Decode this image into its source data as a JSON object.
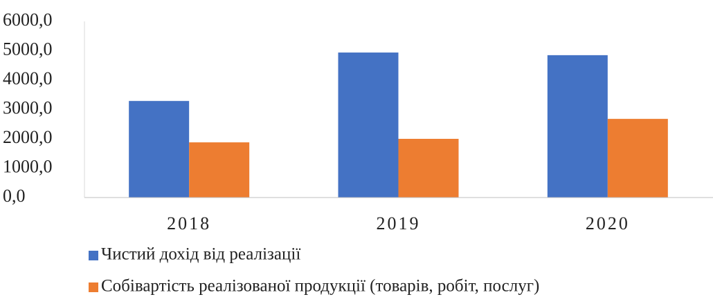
{
  "chart_data": {
    "type": "bar",
    "categories": [
      "2018",
      "2019",
      "2020"
    ],
    "series": [
      {
        "name": "Чистий дохід від реалізації",
        "color": "#4472c4",
        "values": [
          3290,
          4940,
          4850
        ]
      },
      {
        "name": "Собівартість реалізованої продукції (товарів, робіт, послуг)",
        "color": "#ed7d31",
        "values": [
          1880,
          2000,
          2680
        ]
      }
    ],
    "ylim": [
      0,
      6000
    ],
    "yticks": [
      {
        "value": 0,
        "label": "0,0"
      },
      {
        "value": 1000,
        "label": "1000,0"
      },
      {
        "value": 2000,
        "label": "2000,0"
      },
      {
        "value": 3000,
        "label": "3000,0"
      },
      {
        "value": 4000,
        "label": "4000,0"
      },
      {
        "value": 5000,
        "label": "5000,0"
      },
      {
        "value": 6000,
        "label": "6000,0"
      }
    ],
    "grid": false,
    "legend": "bottom"
  }
}
